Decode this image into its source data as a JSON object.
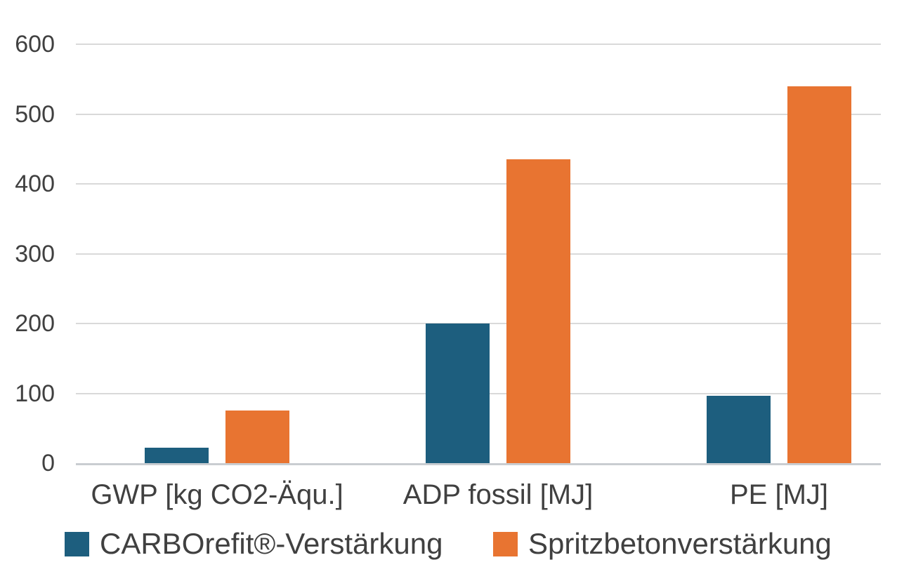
{
  "chart_data": {
    "type": "bar",
    "title": "",
    "xlabel": "",
    "ylabel": "",
    "categories": [
      "GWP [kg CO2-Äqu.]",
      "ADP fossil [MJ]",
      "PE [MJ]"
    ],
    "series": [
      {
        "name": "CARBOrefit®-Verstärkung",
        "color": "#1d5e7e",
        "values": [
          22,
          200,
          96
        ]
      },
      {
        "name": "Spritzbetonverstärkung",
        "color": "#e87431",
        "values": [
          75,
          435,
          540
        ]
      }
    ],
    "ylim": [
      0,
      600
    ],
    "yticks": [
      0,
      100,
      200,
      300,
      400,
      500,
      600
    ],
    "grid": true,
    "legend_position": "bottom",
    "colors": {
      "gridline": "#d9d9d9",
      "axis_line": "#c9cdd1",
      "text": "#404040",
      "background": "#ffffff"
    }
  }
}
